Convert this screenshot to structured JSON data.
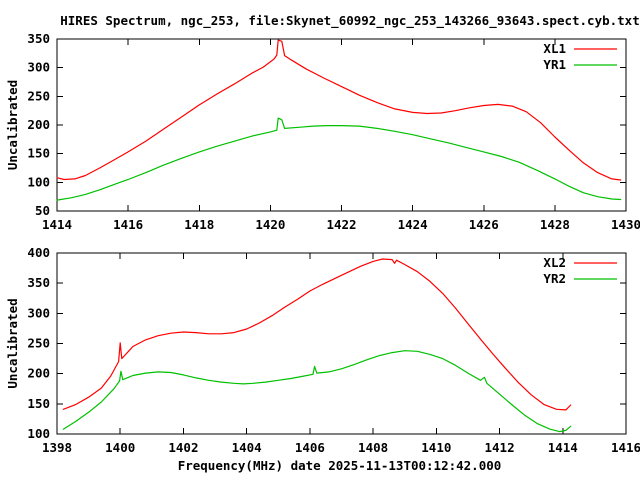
{
  "title": "HIRES Spectrum, ngc_253, file:Skynet_60992_ngc_253_143266_93643.spect.cyb.txt",
  "colors": {
    "background": "#ffffff",
    "axis": "#000000",
    "series_red": "#ff0000",
    "series_green": "#00c000"
  },
  "chart_data": [
    {
      "type": "line",
      "ylabel": "Uncalibrated",
      "xlim": [
        1414,
        1430
      ],
      "ylim": [
        50,
        350
      ],
      "xticks": [
        1414,
        1416,
        1418,
        1420,
        1422,
        1424,
        1426,
        1428,
        1430
      ],
      "yticks": [
        50,
        100,
        150,
        200,
        250,
        300,
        350
      ],
      "grid": false,
      "legend_position": "top-right",
      "series": [
        {
          "name": "XL1",
          "color": "#ff0000",
          "points": [
            [
              1414,
              108
            ],
            [
              1414.2,
              105
            ],
            [
              1414.5,
              106
            ],
            [
              1414.8,
              112
            ],
            [
              1415.2,
              125
            ],
            [
              1415.6,
              139
            ],
            [
              1416,
              153
            ],
            [
              1416.5,
              172
            ],
            [
              1417,
              193
            ],
            [
              1417.5,
              214
            ],
            [
              1418,
              235
            ],
            [
              1418.5,
              254
            ],
            [
              1419,
              272
            ],
            [
              1419.5,
              291
            ],
            [
              1419.8,
              301
            ],
            [
              1420.1,
              315
            ],
            [
              1420.18,
              322
            ],
            [
              1420.22,
              348
            ],
            [
              1420.32,
              346
            ],
            [
              1420.4,
              321
            ],
            [
              1420.6,
              313
            ],
            [
              1421,
              298
            ],
            [
              1421.5,
              282
            ],
            [
              1422,
              267
            ],
            [
              1422.5,
              252
            ],
            [
              1423,
              239
            ],
            [
              1423.5,
              228
            ],
            [
              1424,
              222
            ],
            [
              1424.4,
              220
            ],
            [
              1424.8,
              221
            ],
            [
              1425.2,
              225
            ],
            [
              1425.6,
              230
            ],
            [
              1426,
              234
            ],
            [
              1426.4,
              236
            ],
            [
              1426.8,
              233
            ],
            [
              1427.2,
              223
            ],
            [
              1427.6,
              204
            ],
            [
              1428,
              179
            ],
            [
              1428.4,
              156
            ],
            [
              1428.8,
              134
            ],
            [
              1429.2,
              117
            ],
            [
              1429.6,
              106
            ],
            [
              1429.85,
              104
            ]
          ]
        },
        {
          "name": "YR1",
          "color": "#00c000",
          "points": [
            [
              1414,
              69
            ],
            [
              1414.4,
              73
            ],
            [
              1414.8,
              79
            ],
            [
              1415.2,
              87
            ],
            [
              1415.6,
              96
            ],
            [
              1416,
              105
            ],
            [
              1416.5,
              117
            ],
            [
              1417,
              130
            ],
            [
              1417.5,
              142
            ],
            [
              1418,
              153
            ],
            [
              1418.5,
              163
            ],
            [
              1419,
              172
            ],
            [
              1419.5,
              181
            ],
            [
              1420,
              188
            ],
            [
              1420.18,
              191
            ],
            [
              1420.22,
              212
            ],
            [
              1420.32,
              209
            ],
            [
              1420.4,
              194
            ],
            [
              1420.8,
              196
            ],
            [
              1421.2,
              198
            ],
            [
              1421.6,
              199
            ],
            [
              1422,
              199
            ],
            [
              1422.5,
              198
            ],
            [
              1423,
              194
            ],
            [
              1423.5,
              189
            ],
            [
              1424,
              183
            ],
            [
              1424.5,
              176
            ],
            [
              1425,
              169
            ],
            [
              1425.5,
              161
            ],
            [
              1426,
              153
            ],
            [
              1426.5,
              145
            ],
            [
              1427,
              135
            ],
            [
              1427.5,
              121
            ],
            [
              1428,
              106
            ],
            [
              1428.4,
              93
            ],
            [
              1428.8,
              82
            ],
            [
              1429.2,
              75
            ],
            [
              1429.6,
              71
            ],
            [
              1429.85,
              70
            ]
          ]
        }
      ]
    },
    {
      "type": "line",
      "ylabel": "Uncalibrated",
      "xlabel": "Frequency(MHz) date 2025-11-13T00:12:42.000",
      "xlim": [
        1398,
        1416
      ],
      "ylim": [
        100,
        400
      ],
      "xticks": [
        1398,
        1400,
        1402,
        1404,
        1406,
        1408,
        1410,
        1412,
        1414,
        1416
      ],
      "yticks": [
        100,
        150,
        200,
        250,
        300,
        350,
        400
      ],
      "grid": false,
      "legend_position": "top-right",
      "series": [
        {
          "name": "XL2",
          "color": "#ff0000",
          "points": [
            [
              1398.2,
              141
            ],
            [
              1398.6,
              149
            ],
            [
              1399,
              161
            ],
            [
              1399.4,
              176
            ],
            [
              1399.7,
              196
            ],
            [
              1399.95,
              220
            ],
            [
              1400,
              251
            ],
            [
              1400.05,
              225
            ],
            [
              1400.4,
              245
            ],
            [
              1400.8,
              256
            ],
            [
              1401.2,
              263
            ],
            [
              1401.6,
              267
            ],
            [
              1402,
              269
            ],
            [
              1402.4,
              268
            ],
            [
              1402.8,
              266
            ],
            [
              1403.2,
              266
            ],
            [
              1403.6,
              268
            ],
            [
              1404,
              274
            ],
            [
              1404.4,
              284
            ],
            [
              1404.8,
              296
            ],
            [
              1405.2,
              310
            ],
            [
              1405.6,
              323
            ],
            [
              1406,
              337
            ],
            [
              1406.4,
              348
            ],
            [
              1406.8,
              358
            ],
            [
              1407.2,
              368
            ],
            [
              1407.6,
              378
            ],
            [
              1408,
              386
            ],
            [
              1408.3,
              390
            ],
            [
              1408.6,
              389
            ],
            [
              1408.68,
              383
            ],
            [
              1408.74,
              388
            ],
            [
              1409,
              381
            ],
            [
              1409.4,
              369
            ],
            [
              1409.8,
              353
            ],
            [
              1410.2,
              333
            ],
            [
              1410.6,
              309
            ],
            [
              1411,
              283
            ],
            [
              1411.4,
              257
            ],
            [
              1411.8,
              232
            ],
            [
              1412.2,
              208
            ],
            [
              1412.6,
              185
            ],
            [
              1413,
              165
            ],
            [
              1413.4,
              149
            ],
            [
              1413.8,
              141
            ],
            [
              1414.1,
              140
            ],
            [
              1414.25,
              148
            ]
          ]
        },
        {
          "name": "YR2",
          "color": "#00c000",
          "points": [
            [
              1398.2,
              108
            ],
            [
              1398.6,
              121
            ],
            [
              1399,
              136
            ],
            [
              1399.4,
              153
            ],
            [
              1399.8,
              175
            ],
            [
              1399.98,
              188
            ],
            [
              1400.02,
              204
            ],
            [
              1400.08,
              190
            ],
            [
              1400.4,
              197
            ],
            [
              1400.8,
              201
            ],
            [
              1401.2,
              203
            ],
            [
              1401.6,
              202
            ],
            [
              1402,
              198
            ],
            [
              1402.4,
              193
            ],
            [
              1402.8,
              189
            ],
            [
              1403.2,
              186
            ],
            [
              1403.6,
              184
            ],
            [
              1403.9,
              183
            ],
            [
              1404.2,
              184
            ],
            [
              1404.6,
              186
            ],
            [
              1405,
              189
            ],
            [
              1405.4,
              192
            ],
            [
              1405.8,
              196
            ],
            [
              1406.1,
              199
            ],
            [
              1406.15,
              212
            ],
            [
              1406.22,
              201
            ],
            [
              1406.6,
              203
            ],
            [
              1407,
              208
            ],
            [
              1407.4,
              215
            ],
            [
              1407.8,
              223
            ],
            [
              1408.2,
              230
            ],
            [
              1408.6,
              235
            ],
            [
              1409,
              238
            ],
            [
              1409.4,
              237
            ],
            [
              1409.8,
              232
            ],
            [
              1410.2,
              225
            ],
            [
              1410.6,
              214
            ],
            [
              1411,
              201
            ],
            [
              1411.4,
              189
            ],
            [
              1411.52,
              194
            ],
            [
              1411.6,
              184
            ],
            [
              1412,
              166
            ],
            [
              1412.4,
              148
            ],
            [
              1412.8,
              131
            ],
            [
              1413.2,
              117
            ],
            [
              1413.6,
              108
            ],
            [
              1413.9,
              104
            ],
            [
              1414.1,
              106
            ],
            [
              1414.25,
              113
            ]
          ]
        }
      ]
    }
  ]
}
